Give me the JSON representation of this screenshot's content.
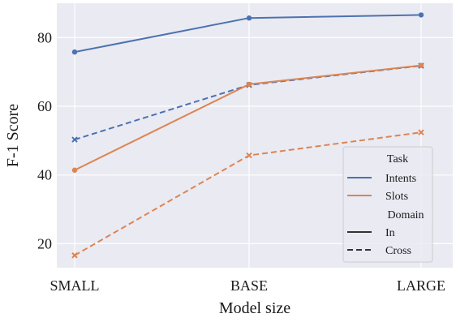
{
  "chart_data": {
    "type": "line",
    "xlabel": "Model size",
    "ylabel": "F-1 Score",
    "categories": [
      "SMALL",
      "BASE",
      "LARGE"
    ],
    "ylim": [
      13,
      90
    ],
    "yticks": [
      20,
      40,
      60,
      80
    ],
    "grid": true,
    "legend": {
      "placement": "bottom-right",
      "task_title": "Task",
      "domain_title": "Domain",
      "entries": [
        {
          "key": "intents",
          "label": "Intents"
        },
        {
          "key": "slots",
          "label": "Slots"
        },
        {
          "key": "in",
          "label": "In"
        },
        {
          "key": "cross",
          "label": "Cross"
        }
      ]
    },
    "series": [
      {
        "task": "Intents",
        "domain": "In",
        "color": "#4c72b0",
        "dash": "solid",
        "marker": "circle",
        "values": [
          75.8,
          85.7,
          86.6
        ]
      },
      {
        "task": "Intents",
        "domain": "Cross",
        "color": "#4c72b0",
        "dash": "dashed",
        "marker": "x",
        "values": [
          50.3,
          66.2,
          71.8
        ]
      },
      {
        "task": "Slots",
        "domain": "In",
        "color": "#dd8452",
        "dash": "solid",
        "marker": "circle",
        "values": [
          41.4,
          66.4,
          71.9
        ]
      },
      {
        "task": "Slots",
        "domain": "Cross",
        "color": "#dd8452",
        "dash": "dashed",
        "marker": "x",
        "values": [
          16.6,
          45.7,
          52.4
        ]
      }
    ]
  }
}
